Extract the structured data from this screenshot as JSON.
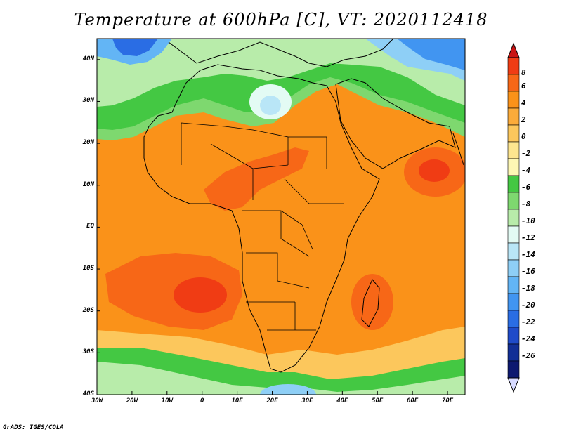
{
  "title": "Temperature at 600hPa [C], VT: 2020112418",
  "credit": "GrADS: IGES/COLA",
  "map": {
    "lon_range": [
      -30,
      75
    ],
    "lat_range": [
      -40,
      45
    ],
    "lon_ticks": [
      {
        "value": -30,
        "label": "30W"
      },
      {
        "value": -20,
        "label": "20W"
      },
      {
        "value": -10,
        "label": "10W"
      },
      {
        "value": 0,
        "label": "0"
      },
      {
        "value": 10,
        "label": "10E"
      },
      {
        "value": 20,
        "label": "20E"
      },
      {
        "value": 30,
        "label": "30E"
      },
      {
        "value": 40,
        "label": "40E"
      },
      {
        "value": 50,
        "label": "50E"
      },
      {
        "value": 60,
        "label": "60E"
      },
      {
        "value": 70,
        "label": "70E"
      }
    ],
    "lat_ticks": [
      {
        "value": 40,
        "label": "40N"
      },
      {
        "value": 30,
        "label": "30N"
      },
      {
        "value": 20,
        "label": "20N"
      },
      {
        "value": 10,
        "label": "10N"
      },
      {
        "value": 0,
        "label": "EQ"
      },
      {
        "value": -10,
        "label": "10S"
      },
      {
        "value": -20,
        "label": "20S"
      },
      {
        "value": -30,
        "label": "30S"
      },
      {
        "value": -40,
        "label": "40S"
      }
    ]
  },
  "colorbar": {
    "labels": [
      "8",
      "6",
      "4",
      "2",
      "0",
      "-2",
      "-4",
      "-6",
      "-8",
      "-10",
      "-12",
      "-14",
      "-16",
      "-18",
      "-20",
      "-22",
      "-24",
      "-26"
    ],
    "colors": [
      "#f03c14",
      "#f76717",
      "#fa9219",
      "#fbab3a",
      "#fcc75c",
      "#fde58f",
      "#fdf7b4",
      "#44c843",
      "#7ed86f",
      "#b8ecaa",
      "#e3fbf4",
      "#b9e6f7",
      "#8ecff6",
      "#63b5f5",
      "#4195f1",
      "#2a6de4",
      "#1f4bc9",
      "#122f96",
      "#0d1970"
    ],
    "top_cap_color": "#c91414",
    "bottom_cap_color": "#d7daff"
  }
}
